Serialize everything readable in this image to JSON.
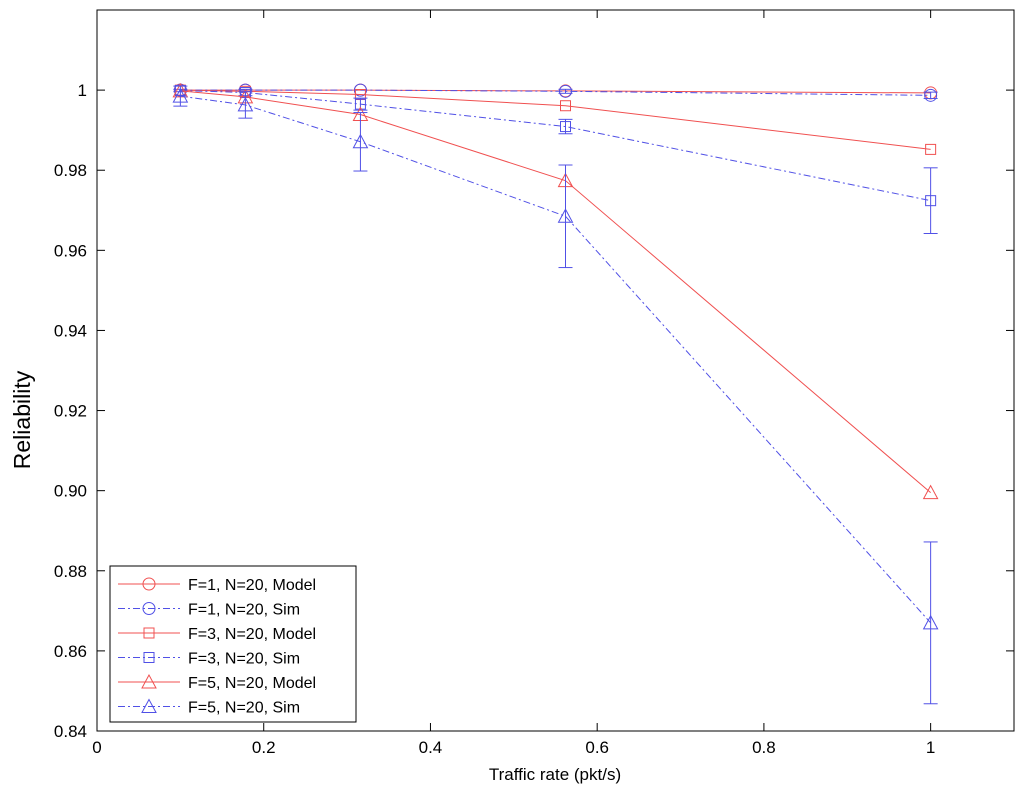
{
  "chart_data": {
    "type": "line",
    "xlabel": "Traffic rate (pkt/s)",
    "ylabel": "Reliability",
    "xlim": [
      0,
      1.1
    ],
    "ylim": [
      0.84,
      1.02
    ],
    "x_ticks": [
      0,
      0.2,
      0.4,
      0.6,
      0.8,
      1
    ],
    "x_tick_labels": [
      "0",
      "0.2",
      "0.4",
      "0.6",
      "0.8",
      "1"
    ],
    "y_ticks": [
      0.84,
      0.86,
      0.88,
      0.9,
      0.92,
      0.94,
      0.96,
      0.98,
      1
    ],
    "y_tick_labels": [
      "0.84",
      "0.86",
      "0.88",
      "0.90",
      "0.92",
      "0.94",
      "0.96",
      "0.98",
      "1"
    ],
    "grid": false,
    "legend_position": "bottom-left",
    "series": [
      {
        "name": "F=1, N=20, Model",
        "color": "#f05050",
        "line": "solid",
        "marker": "circle",
        "x": [
          0.1,
          0.178,
          0.316,
          0.562,
          1.0
        ],
        "y": [
          1.0,
          1.0,
          1.0,
          0.9998,
          0.9993
        ]
      },
      {
        "name": "F=1, N=20, Sim",
        "color": "#5050e6",
        "line": "dashdot",
        "marker": "circle",
        "x": [
          0.1,
          0.178,
          0.316,
          0.562,
          1.0
        ],
        "y": [
          1.0,
          1.0,
          1.0,
          0.9997,
          0.9987
        ],
        "err": [
          0.0,
          0.0,
          0.0,
          0.0005,
          0.0008
        ]
      },
      {
        "name": "F=3, N=20, Model",
        "color": "#f05050",
        "line": "solid",
        "marker": "square",
        "x": [
          0.1,
          0.178,
          0.316,
          0.562,
          1.0
        ],
        "y": [
          1.0,
          0.9997,
          0.9989,
          0.9961,
          0.9852
        ]
      },
      {
        "name": "F=3, N=20, Sim",
        "color": "#5050e6",
        "line": "dashdot",
        "marker": "square",
        "x": [
          0.1,
          0.178,
          0.316,
          0.562,
          1.0
        ],
        "y": [
          0.9999,
          0.9994,
          0.9965,
          0.9909,
          0.9724
        ],
        "err": [
          0.0003,
          0.0008,
          0.0015,
          0.0018,
          0.0082
        ]
      },
      {
        "name": "F=5, N=20, Model",
        "color": "#f05050",
        "line": "solid",
        "marker": "triangle",
        "x": [
          0.1,
          0.178,
          0.316,
          0.562,
          1.0
        ],
        "y": [
          0.9998,
          0.9983,
          0.9939,
          0.9774,
          0.8995
        ]
      },
      {
        "name": "F=5, N=20, Sim",
        "color": "#5050e6",
        "line": "dashdot",
        "marker": "triangle",
        "x": [
          0.1,
          0.178,
          0.316,
          0.562,
          1.0
        ],
        "y": [
          0.9985,
          0.9963,
          0.9871,
          0.9685,
          0.867
        ],
        "err": [
          0.0025,
          0.0033,
          0.0073,
          0.0128,
          0.0202
        ]
      }
    ]
  }
}
